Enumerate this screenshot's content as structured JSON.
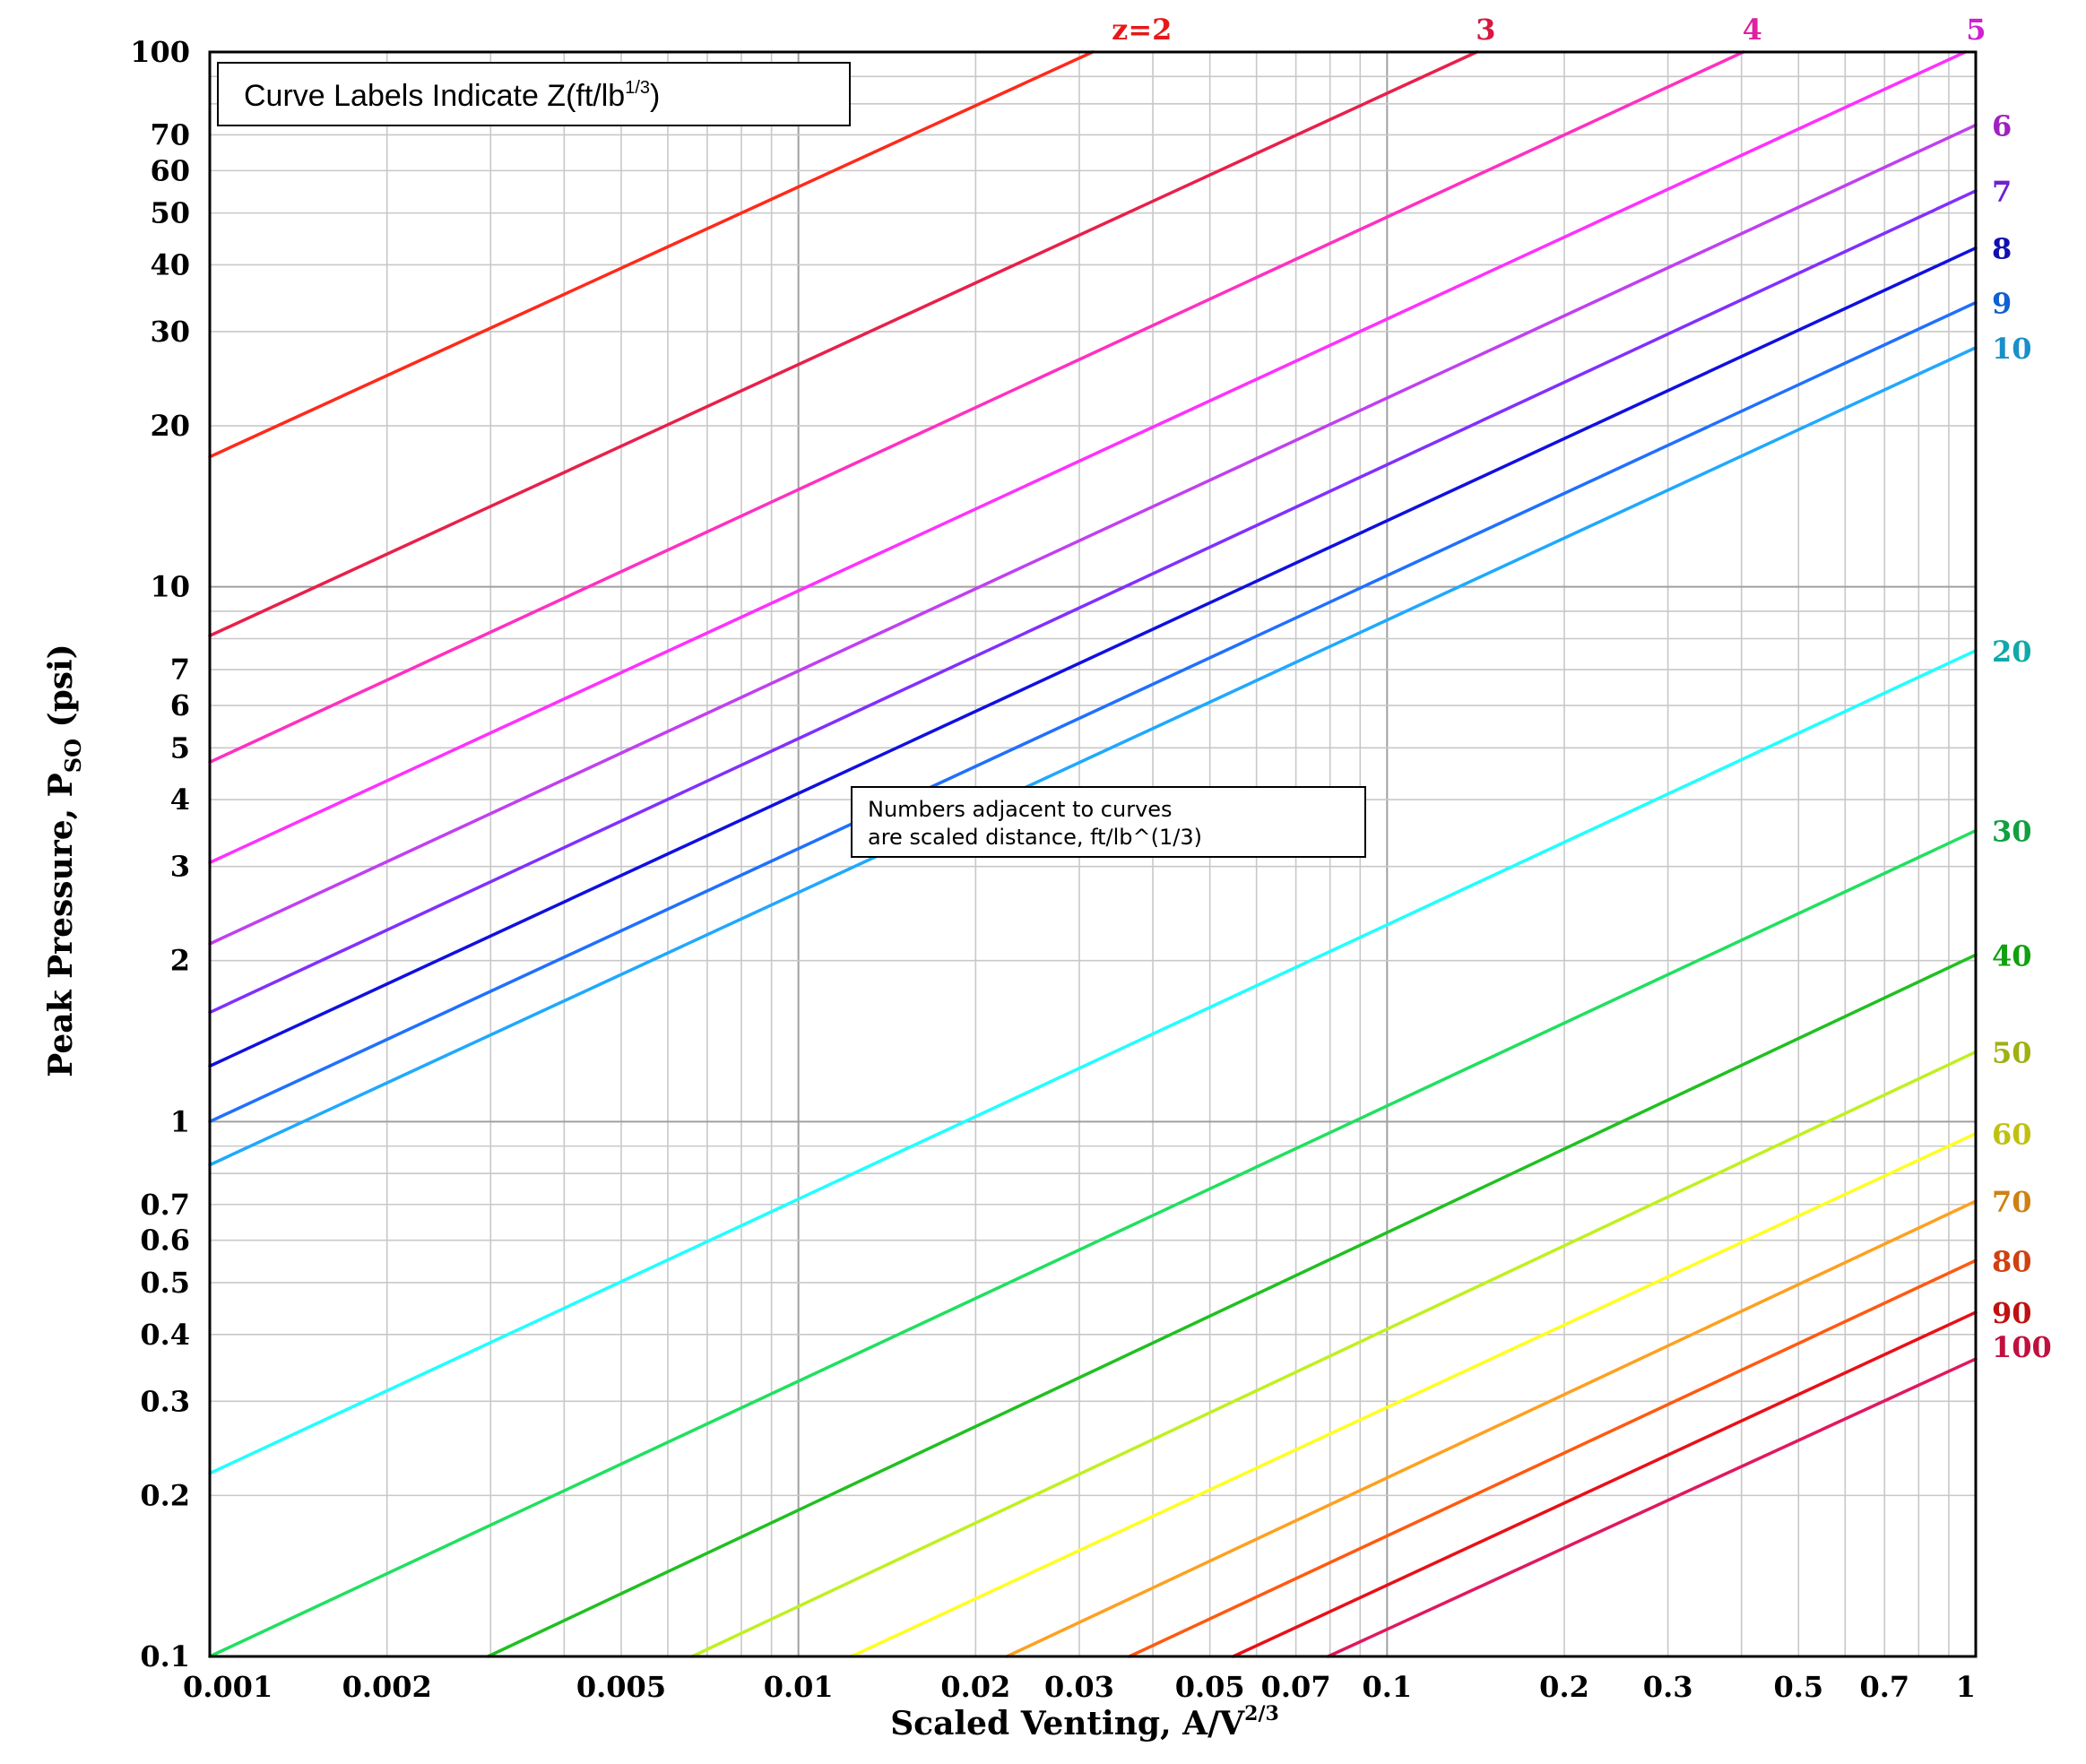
{
  "chart_data": {
    "type": "line",
    "title_box": "Curve Labels Indicate Z(ft/lb",
    "title_box_sup": "1/3",
    "title_box_end": ")",
    "note_line1": "Numbers adjacent to curves",
    "note_line2": "are scaled distance, ft/lb^(1/3)",
    "ylabel": "Peak Pressure, P",
    "ylabel_sub": "SO",
    "ylabel_end": " (psi)",
    "xlabel": "Scaled Venting, A/V",
    "xlabel_sup": "2/3",
    "xscale": "log",
    "yscale": "log",
    "xlim": [
      0.001,
      1
    ],
    "ylim": [
      0.1,
      100
    ],
    "grid": true,
    "x_ticks": [
      0.001,
      0.002,
      0.005,
      0.01,
      0.02,
      0.03,
      0.05,
      0.07,
      0.1,
      0.2,
      0.3,
      0.5,
      0.7,
      1
    ],
    "x_tick_labels": [
      "0.001",
      "0.002",
      "0.005",
      "0.01",
      "0.02",
      "0.03",
      "0.05",
      "0.07",
      "0.1",
      "0.2",
      "0.3",
      "0.5",
      "0.7",
      "1"
    ],
    "y_ticks": [
      0.1,
      0.2,
      0.3,
      0.4,
      0.5,
      0.6,
      0.7,
      1,
      2,
      3,
      4,
      5,
      6,
      7,
      10,
      20,
      30,
      40,
      50,
      60,
      70,
      100
    ],
    "y_tick_labels": [
      "0.1",
      "0.2",
      "0.3",
      "0.4",
      "0.5",
      "0.6",
      "0.7",
      "1",
      "2",
      "3",
      "4",
      "5",
      "6",
      "7",
      "10",
      "20",
      "30",
      "40",
      "50",
      "60",
      "70",
      "100"
    ],
    "series": [
      {
        "name": "2",
        "label": "z=2",
        "color": "#ff2a1a",
        "x": [
          0.001,
          0.0316
        ],
        "y": [
          17.5,
          100
        ]
      },
      {
        "name": "3",
        "label": "3",
        "color": "#e8204a",
        "x": [
          0.001,
          0.142
        ],
        "y": [
          8.1,
          100
        ]
      },
      {
        "name": "4",
        "label": "4",
        "color": "#ff30c0",
        "x": [
          0.001,
          0.403
        ],
        "y": [
          4.7,
          100
        ]
      },
      {
        "name": "5",
        "label": "5",
        "color": "#ff30ff",
        "x": [
          0.001,
          0.96
        ],
        "y": [
          3.05,
          100
        ]
      },
      {
        "name": "6",
        "label": "6",
        "color": "#c040f0",
        "x": [
          0.001,
          1
        ],
        "y": [
          2.15,
          73
        ]
      },
      {
        "name": "7",
        "label": "7",
        "color": "#8030ff",
        "x": [
          0.001,
          1
        ],
        "y": [
          1.6,
          55
        ]
      },
      {
        "name": "8",
        "label": "8",
        "color": "#1010e0",
        "x": [
          0.001,
          1
        ],
        "y": [
          1.27,
          43
        ]
      },
      {
        "name": "9",
        "label": "9",
        "color": "#2070ff",
        "x": [
          0.001,
          1
        ],
        "y": [
          1.0,
          34
        ]
      },
      {
        "name": "10",
        "label": "10",
        "color": "#20a8ff",
        "x": [
          0.001,
          1
        ],
        "y": [
          0.83,
          28
        ]
      },
      {
        "name": "20",
        "label": "20",
        "color": "#20ffff",
        "x": [
          0.001,
          1
        ],
        "y": [
          0.22,
          7.6
        ]
      },
      {
        "name": "30",
        "label": "30",
        "color": "#20e060",
        "x": [
          0.001,
          1
        ],
        "y": [
          0.1,
          3.5
        ]
      },
      {
        "name": "40",
        "label": "40",
        "color": "#20c020",
        "x": [
          0.00297,
          1
        ],
        "y": [
          0.1,
          2.05
        ]
      },
      {
        "name": "50",
        "label": "50",
        "color": "#c0f020",
        "x": [
          0.0066,
          1
        ],
        "y": [
          0.1,
          1.35
        ]
      },
      {
        "name": "60",
        "label": "60",
        "color": "#ffff20",
        "x": [
          0.0123,
          1
        ],
        "y": [
          0.1,
          0.95
        ]
      },
      {
        "name": "70",
        "label": "70",
        "color": "#ffa020",
        "x": [
          0.0226,
          1
        ],
        "y": [
          0.1,
          0.71
        ]
      },
      {
        "name": "80",
        "label": "80",
        "color": "#ff5a10",
        "x": [
          0.0365,
          1
        ],
        "y": [
          0.1,
          0.55
        ]
      },
      {
        "name": "90",
        "label": "90",
        "color": "#e81018",
        "x": [
          0.0548,
          1
        ],
        "y": [
          0.1,
          0.44
        ]
      },
      {
        "name": "100",
        "label": "100",
        "color": "#e01860",
        "x": [
          0.0794,
          1
        ],
        "y": [
          0.1,
          0.36
        ]
      }
    ],
    "label_colors": {
      "2": "#e81818",
      "3": "#d81840",
      "4": "#e020a0",
      "5": "#d020d0",
      "6": "#a020c0",
      "7": "#7020d0",
      "8": "#1010b0",
      "9": "#1060d0",
      "10": "#1890c8",
      "20": "#10a8a8",
      "30": "#10a040",
      "40": "#10a010",
      "50": "#a0b010",
      "60": "#c0c010",
      "70": "#d08010",
      "80": "#d04010",
      "90": "#c01010",
      "100": "#c01040"
    }
  }
}
